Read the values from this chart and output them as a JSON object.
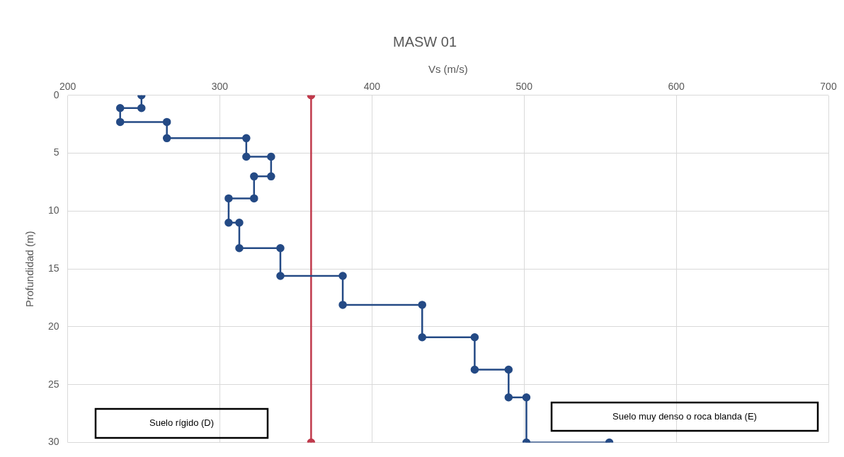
{
  "chart_data": {
    "type": "line",
    "title": "MASW 01",
    "xlabel": "Vs (m/s)",
    "ylabel": "Profundidad (m)",
    "xlim": [
      200,
      700
    ],
    "xticks": [
      200,
      300,
      400,
      500,
      600,
      700
    ],
    "ylim": [
      30,
      0
    ],
    "yticks": [
      0,
      5,
      10,
      15,
      20,
      25,
      30
    ],
    "grid": true,
    "legend": false,
    "marker": "circle",
    "line_style": "solid",
    "series": [
      {
        "color": "#244a85",
        "x": [
          248.5,
          248.5,
          234.5,
          234.5,
          265.2,
          265.2,
          317.4,
          317.4,
          333.7,
          333.7,
          322.5,
          322.5,
          305.8,
          305.8,
          312.8,
          312.8,
          339.8,
          339.8,
          380.8,
          380.8,
          433,
          433,
          467.5,
          467.5,
          489.8,
          489.8,
          501.5,
          501.5,
          556
        ],
        "values": [
          0,
          1.1,
          1.1,
          2.3,
          2.3,
          3.7,
          3.7,
          5.3,
          5.3,
          7,
          7,
          8.9,
          8.9,
          11,
          11,
          13.2,
          13.2,
          15.6,
          15.6,
          18.1,
          18.1,
          20.9,
          20.9,
          23.7,
          23.7,
          26.1,
          26.1,
          30,
          30
        ]
      },
      {
        "color": "#c0394b",
        "x": [
          360,
          360
        ],
        "values": [
          0,
          30
        ]
      }
    ],
    "annotations": [
      "Suelo rígido (D)",
      "Suelo muy denso o roca blanda (E)"
    ]
  }
}
